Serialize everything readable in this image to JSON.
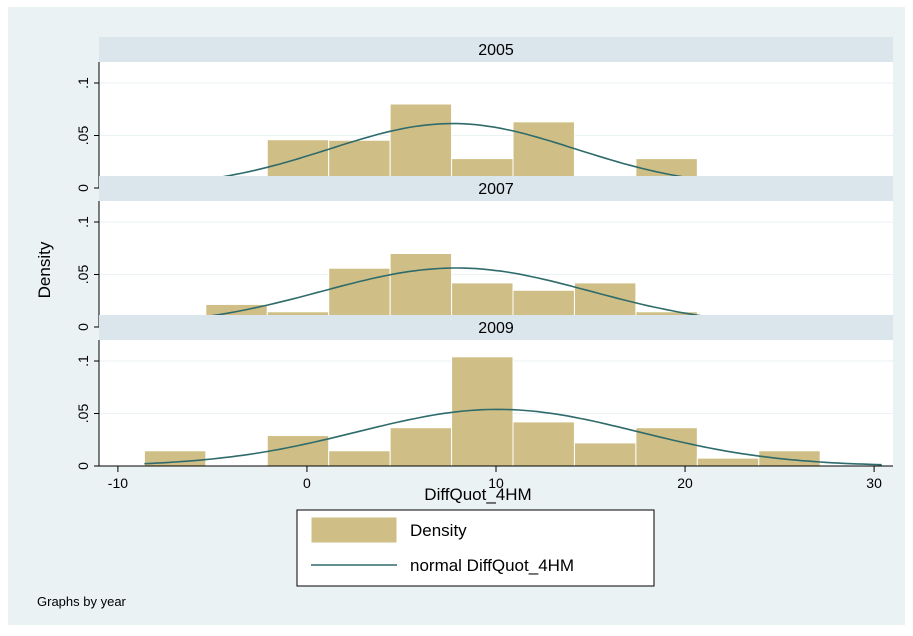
{
  "chart_data": {
    "type": "bar",
    "subtype": "histogram-by-group-with-normal-overlay",
    "xlabel": "DiffQuot_4HM",
    "ylabel": "Density",
    "xlim": [
      -11,
      31
    ],
    "ylim": [
      0,
      0.12
    ],
    "xticks": [
      {
        "value": -10,
        "label": "-10"
      },
      {
        "value": 0,
        "label": "0"
      },
      {
        "value": 10,
        "label": "10"
      },
      {
        "value": 20,
        "label": "20"
      },
      {
        "value": 30,
        "label": "30"
      }
    ],
    "yticks": [
      {
        "value": 0,
        "label": "0"
      },
      {
        "value": 0.05,
        "label": ".05"
      },
      {
        "value": 0.1,
        "label": ".1"
      }
    ],
    "grid": true,
    "legend": {
      "position": "bottom",
      "entries": [
        {
          "label": "Density",
          "kind": "bar"
        },
        {
          "label": "normal DiffQuot_4HM",
          "kind": "line"
        }
      ]
    },
    "note": "Graphs by year",
    "bar_color": "#cfbf86",
    "bar_edge_color": "#ffffff",
    "line_color": "#2f6b6b",
    "panel_header_color": "#dbe5ec",
    "outer_background": "#eaf2f3",
    "bin_edges": [
      -8.6,
      -5.35,
      -2.1,
      1.15,
      4.4,
      7.65,
      10.9,
      14.15,
      17.4,
      20.65,
      23.9,
      27.15,
      30.4
    ],
    "panels": [
      {
        "label": "2005",
        "densities": [
          0,
          0.0095,
          0.046,
          0.0455,
          0.08,
          0.028,
          0.063,
          0.0095,
          0.028,
          0,
          0.0095,
          0
        ],
        "normal": {
          "mean": 7.7,
          "sd": 6.5
        }
      },
      {
        "label": "2007",
        "densities": [
          0.0075,
          0.0215,
          0.0145,
          0.056,
          0.07,
          0.042,
          0.035,
          0.042,
          0.0145,
          0.0075,
          0,
          0.0075
        ],
        "normal": {
          "mean": 7.9,
          "sd": 7.1
        }
      },
      {
        "label": "2009",
        "densities": [
          0.0145,
          0,
          0.029,
          0.0145,
          0.0365,
          0.104,
          0.042,
          0.022,
          0.0365,
          0.0075,
          0.0145,
          0
        ],
        "normal": {
          "mean": 10.1,
          "sd": 7.4
        }
      }
    ]
  }
}
